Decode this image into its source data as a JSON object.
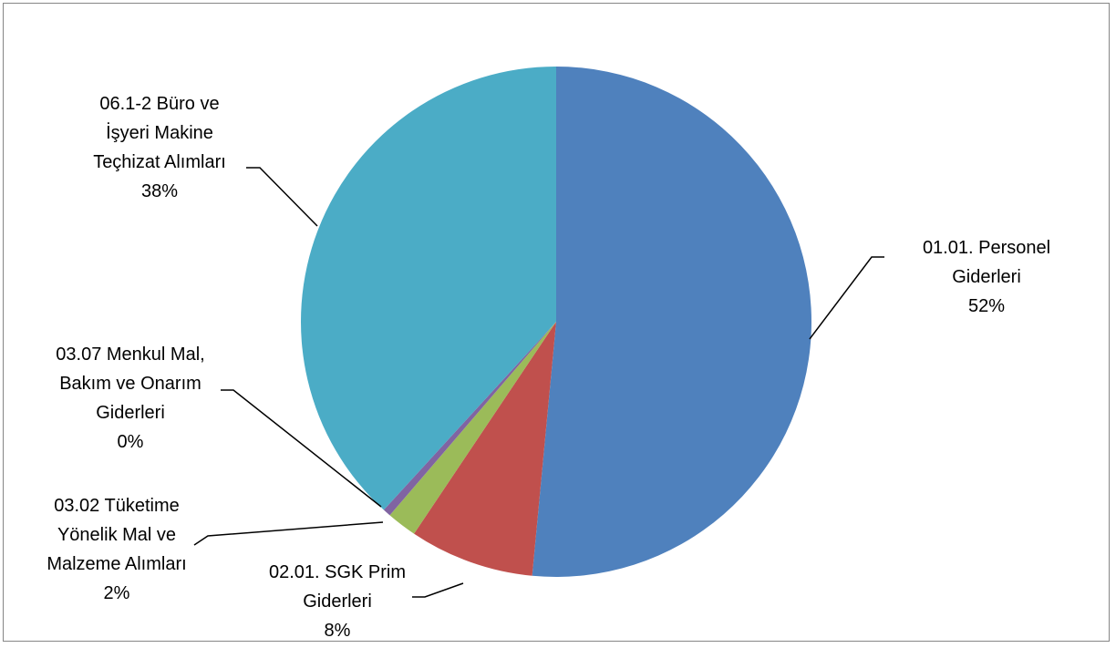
{
  "chart_data": {
    "type": "pie",
    "title": "",
    "slices": [
      {
        "label": "01.01. Personel Giderleri",
        "label_lines": [
          "01.01. Personel",
          "Giderleri"
        ],
        "percent_label": "52%",
        "value": 51.5,
        "color": "#4F81BD"
      },
      {
        "label": "02.01. SGK Prim Giderleri",
        "label_lines": [
          "02.01. SGK Prim",
          "Giderleri"
        ],
        "percent_label": "8%",
        "value": 7.9,
        "color": "#C0504D"
      },
      {
        "label": "03.02 Tüketime Yönelik Mal ve Malzeme Alımları",
        "label_lines": [
          "03.02 Tüketime",
          "Yönelik Mal ve",
          "Malzeme Alımları"
        ],
        "percent_label": "2%",
        "value": 1.9,
        "color": "#9BBB59"
      },
      {
        "label": "03.07 Menkul Mal, Bakım ve Onarım Giderleri",
        "label_lines": [
          "03.07 Menkul Mal,",
          "Bakım ve Onarım",
          "Giderleri"
        ],
        "percent_label": "0%",
        "value": 0.5,
        "color": "#8064A2"
      },
      {
        "label": "06.1-2 Büro ve İşyeri Makine Teçhizat Alımları",
        "label_lines": [
          "06.1-2  Büro ve",
          "İşyeri Makine",
          "Teçhizat Alımları"
        ],
        "percent_label": "38%",
        "value": 38.2,
        "color": "#4BACC6"
      }
    ]
  }
}
